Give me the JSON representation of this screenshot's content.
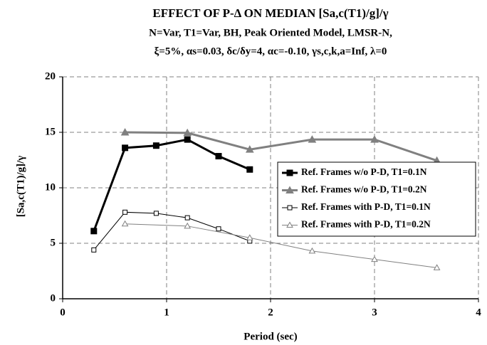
{
  "chart_data": {
    "type": "line",
    "title": "EFFECT OF P-Δ ON MEDIAN [Sa,c(T1)/g]/γ",
    "subtitle": [
      "N=Var, T1=Var, BH, Peak Oriented Model, LMSR-N,",
      "ξ=5%, αs=0.03, δc/δy=4, αc=-0.10, γs,c,k,a=Inf, λ=0"
    ],
    "xlabel": "Period (sec)",
    "ylabel": "[Sa,c(T1)/g]/γ",
    "xlim": [
      0,
      4
    ],
    "xticks": [
      0,
      1,
      2,
      3,
      4
    ],
    "ylim": [
      0,
      20
    ],
    "yticks": [
      0,
      5,
      10,
      15,
      20
    ],
    "grid": true,
    "legend": "right",
    "series": [
      {
        "name": "Ref. Frames w/o P-D, T1=0.1N",
        "color": "#000000",
        "marker": "square",
        "filled": true,
        "x": [
          0.3,
          0.6,
          0.9,
          1.2,
          1.5,
          1.8
        ],
        "values": [
          6.1,
          13.6,
          13.8,
          14.35,
          12.85,
          11.65
        ]
      },
      {
        "name": "Ref. Frames w/o P-D, T1=0.2N",
        "color": "#808080",
        "marker": "triangle",
        "filled": true,
        "x": [
          0.6,
          1.2,
          1.8,
          2.4,
          3.0,
          3.6
        ],
        "values": [
          15.0,
          14.95,
          13.45,
          14.35,
          14.35,
          12.45
        ]
      },
      {
        "name": "Ref. Frames with P-D, T1=0.1N",
        "color": "#000000",
        "marker": "square",
        "filled": false,
        "x": [
          0.3,
          0.6,
          0.9,
          1.2,
          1.5,
          1.8
        ],
        "values": [
          4.4,
          7.8,
          7.7,
          7.3,
          6.3,
          5.2
        ]
      },
      {
        "name": "Ref. Frames with P-D, T1=0.2N",
        "color": "#808080",
        "marker": "triangle",
        "filled": false,
        "x": [
          0.6,
          1.2,
          1.8,
          2.4,
          3.0,
          3.6
        ],
        "values": [
          6.75,
          6.55,
          5.5,
          4.3,
          3.55,
          2.8
        ]
      }
    ]
  }
}
